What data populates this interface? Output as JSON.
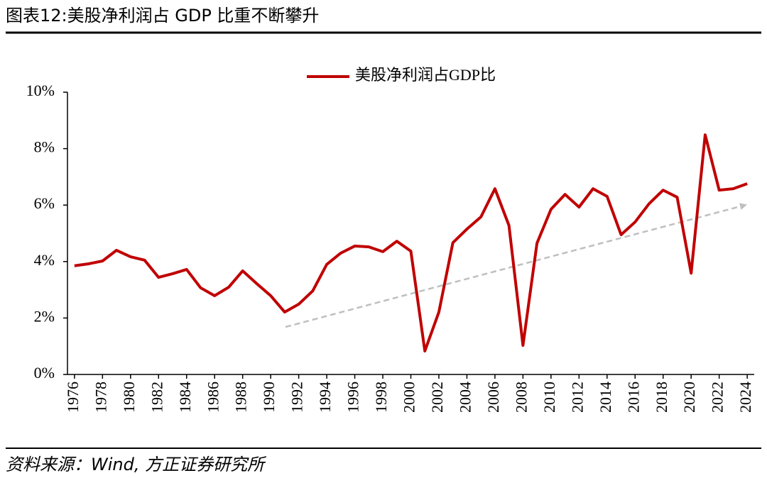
{
  "title": "图表12:美股净利润占 GDP 比重不断攀升",
  "source": "资料来源：Wind, 方正证券研究所",
  "chart_data": {
    "type": "line",
    "x": [
      1976,
      1977,
      1978,
      1979,
      1980,
      1981,
      1982,
      1983,
      1984,
      1985,
      1986,
      1987,
      1988,
      1989,
      1990,
      1991,
      1992,
      1993,
      1994,
      1995,
      1996,
      1997,
      1998,
      1999,
      2000,
      2001,
      2002,
      2003,
      2004,
      2005,
      2006,
      2007,
      2008,
      2009,
      2010,
      2011,
      2012,
      2013,
      2014,
      2015,
      2016,
      2017,
      2018,
      2019,
      2020,
      2021,
      2022,
      2023,
      2024
    ],
    "series": [
      {
        "name": "美股净利润占GDP比",
        "color": "#c00000",
        "values": [
          3.85,
          3.92,
          4.02,
          4.4,
          4.17,
          4.05,
          3.44,
          3.57,
          3.72,
          3.07,
          2.79,
          3.09,
          3.67,
          3.22,
          2.79,
          2.21,
          2.49,
          2.96,
          3.9,
          4.3,
          4.55,
          4.52,
          4.35,
          4.72,
          4.37,
          0.83,
          2.21,
          4.67,
          5.15,
          5.58,
          6.58,
          5.28,
          1.03,
          4.65,
          5.85,
          6.38,
          5.93,
          6.58,
          6.31,
          4.95,
          5.4,
          6.05,
          6.53,
          6.28,
          3.59,
          8.49,
          6.53,
          6.58,
          6.76
        ]
      }
    ],
    "xlim": [
      1975.5,
      2024.5
    ],
    "xticks": [
      1976,
      1978,
      1980,
      1982,
      1984,
      1986,
      1988,
      1990,
      1992,
      1994,
      1996,
      1998,
      2000,
      2002,
      2004,
      2006,
      2008,
      2010,
      2012,
      2014,
      2016,
      2018,
      2020,
      2022,
      2024
    ],
    "ylim": [
      0,
      10
    ],
    "yticks": [
      {
        "value": 0,
        "label": "0%"
      },
      {
        "value": 2,
        "label": "2%"
      },
      {
        "value": 4,
        "label": "4%"
      },
      {
        "value": 6,
        "label": "6%"
      },
      {
        "value": 8,
        "label": "8%"
      },
      {
        "value": 10,
        "label": "10%"
      }
    ],
    "grid": false
  }
}
